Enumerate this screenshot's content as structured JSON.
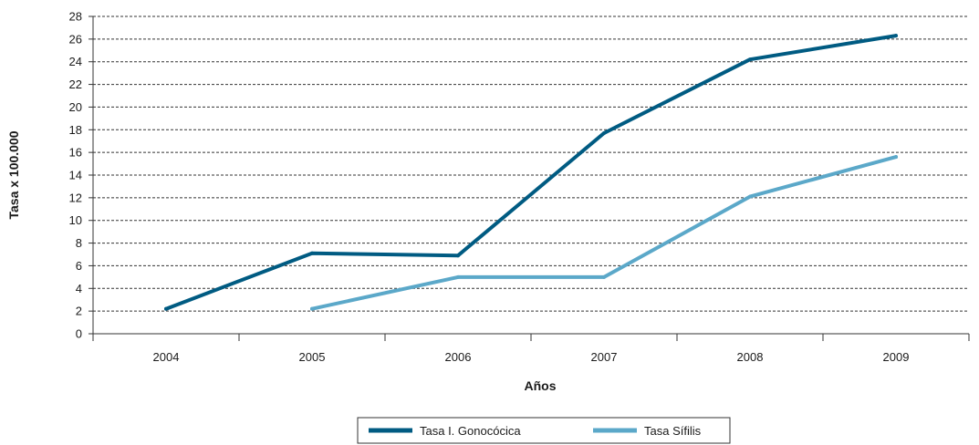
{
  "chart_data": {
    "type": "line",
    "title": "",
    "xlabel": "Años",
    "ylabel": "Tasa x 100.000",
    "categories": [
      "2004",
      "2005",
      "2006",
      "2007",
      "2008",
      "2009"
    ],
    "ylim": [
      0,
      28
    ],
    "yticks": [
      "0",
      "2",
      "4",
      "6",
      "8",
      "10",
      "12",
      "14",
      "16",
      "18",
      "20",
      "22",
      "24",
      "26",
      "28"
    ],
    "grid": "horizontal dashed",
    "legend_position": "bottom",
    "series": [
      {
        "name": "Tasa I. Gonocócica",
        "color": "#005b82",
        "values": [
          2.2,
          7.1,
          6.9,
          17.7,
          24.2,
          26.3
        ]
      },
      {
        "name": "Tasa Sífilis",
        "color": "#5ba8c9",
        "values": [
          null,
          2.2,
          5.0,
          5.0,
          12.1,
          15.6
        ]
      }
    ]
  }
}
